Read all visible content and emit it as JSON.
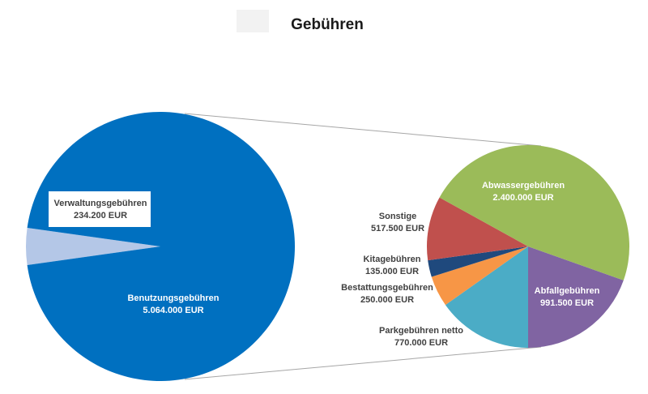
{
  "chart_data": {
    "type": "pie-of-pie",
    "title": "Gebühren",
    "colors": {
      "Benutzungsgebühren": "#0070c0",
      "Verwaltungsgebühren": "#b4c7e7",
      "Abwassergebühren": "#9bbb59",
      "Abfallgebühren": "#8064a2",
      "Parkgebühren netto": "#4bacc6",
      "Bestattungsgebühren": "#f79646",
      "Kitagebühren": "#1f497d",
      "Sonstige": "#c0504d",
      "connector": "#a6a6a6"
    },
    "main_pie": [
      {
        "label": "Verwaltungsgebühren",
        "value_text": "234.200 EUR",
        "value": 234200
      },
      {
        "label": "Benutzungsgebühren",
        "value_text": "5.064.000 EUR",
        "value": 5064000
      }
    ],
    "breakdown_of": "Benutzungsgebühren",
    "secondary_pie": [
      {
        "label": "Abfallgebühren",
        "value_text": "991.500 EUR",
        "value": 991500
      },
      {
        "label": "Parkgebühren netto",
        "value_text": "770.000 EUR",
        "value": 770000
      },
      {
        "label": "Bestattungsgebühren",
        "value_text": "250.000 EUR",
        "value": 250000
      },
      {
        "label": "Kitagebühren",
        "value_text": "135.000 EUR",
        "value": 135000
      },
      {
        "label": "Sonstige",
        "value_text": "517.500 EUR",
        "value": 517500
      },
      {
        "label": "Abwassergebühren",
        "value_text": "2.400.000 EUR",
        "value": 2400000
      }
    ]
  }
}
